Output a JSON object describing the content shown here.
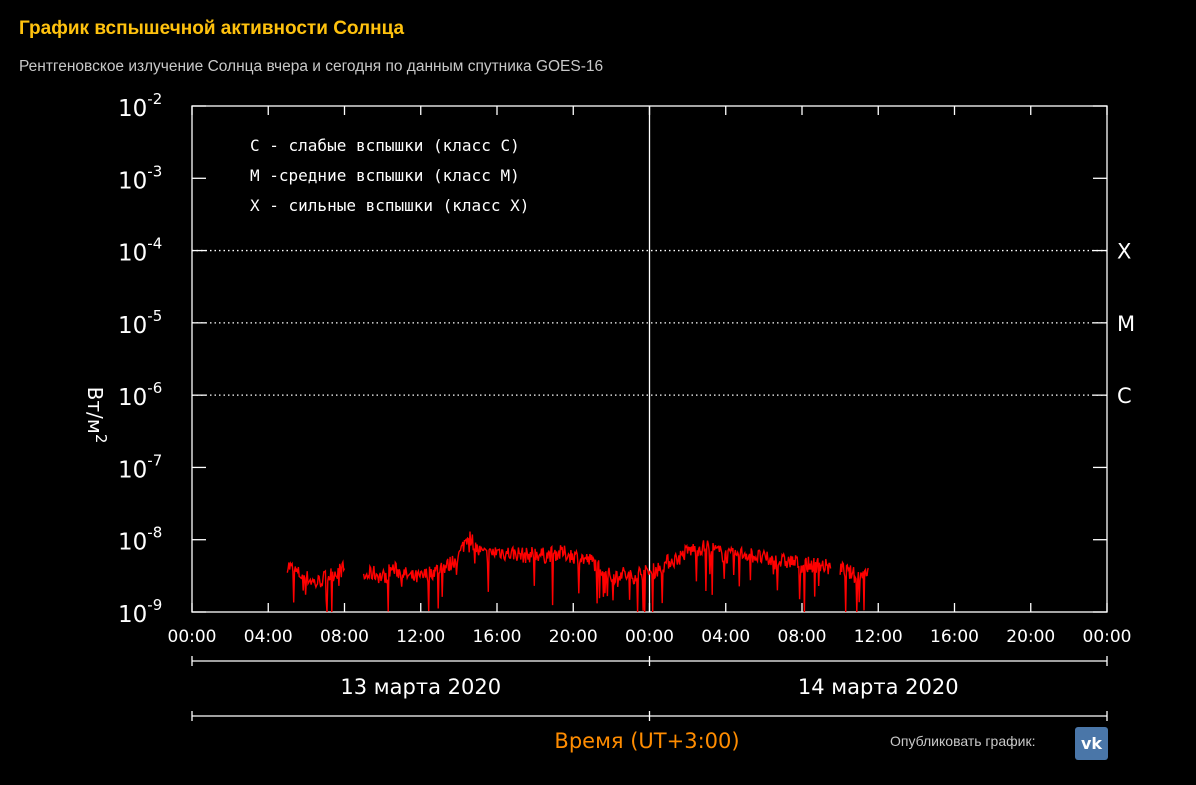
{
  "header": {
    "title": "График вспышечной активности Солнца",
    "subtitle": "Рентгеновское излучение Солнца вчера и сегодня по данным спутника GOES-16"
  },
  "publish": {
    "label": "Опубликовать график:",
    "vk_icon": "vk-icon",
    "vk_text": "vk"
  },
  "chart_data": {
    "type": "line",
    "title": "",
    "ylabel": "Вт/м",
    "ylabel_sup": "2",
    "xlabel": "Время (UT+3:00)",
    "yscale": "log",
    "ylim": [
      1e-09,
      0.01
    ],
    "y_ticks": [
      {
        "base": "10",
        "exp": "-2"
      },
      {
        "base": "10",
        "exp": "-3"
      },
      {
        "base": "10",
        "exp": "-4"
      },
      {
        "base": "10",
        "exp": "-5"
      },
      {
        "base": "10",
        "exp": "-6"
      },
      {
        "base": "10",
        "exp": "-7"
      },
      {
        "base": "10",
        "exp": "-8"
      },
      {
        "base": "10",
        "exp": "-9"
      }
    ],
    "x_tick_labels": [
      "00:00",
      "04:00",
      "08:00",
      "12:00",
      "16:00",
      "20:00",
      "00:00",
      "04:00",
      "08:00",
      "12:00",
      "16:00",
      "20:00",
      "00:00"
    ],
    "days": [
      "13 марта 2020",
      "14 марта 2020"
    ],
    "legend": [
      "C - слабые вспышки (класс C)",
      "M -средние вспышки (класс M)",
      "X - сильные вспышки (класс X)"
    ],
    "class_lines": [
      {
        "label": "X",
        "value": 0.0001
      },
      {
        "label": "M",
        "value": 1e-05
      },
      {
        "label": "C",
        "value": 1e-06
      }
    ],
    "colors": {
      "series": "#ff0000",
      "axis": "#ffffff",
      "xlabel": "#ff8c00"
    },
    "series": [
      {
        "x_unit": "hours since 13 марта 2020 00:00",
        "segments": [
          {
            "x": [
              5.0,
              5.5,
              6.0,
              6.5,
              7.0,
              7.5,
              8.0
            ],
            "y": [
              4.5e-09,
              3.5e-09,
              3e-09,
              2.5e-09,
              3e-09,
              3.5e-09,
              4e-09
            ]
          },
          {
            "x": [
              9.0,
              9.5,
              10.0,
              10.5,
              11.0,
              11.5,
              12.0,
              12.5,
              13.0,
              13.5,
              14.0,
              14.5,
              15.0,
              15.5,
              16.0,
              16.5,
              17.0,
              17.5,
              18.0,
              18.5,
              19.0,
              19.5,
              20.0,
              20.5,
              21.0,
              21.5,
              22.0,
              22.5,
              23.0,
              23.5,
              24.0,
              24.5,
              25.0,
              25.5,
              26.0,
              26.5,
              27.0,
              27.5,
              28.0,
              28.5,
              29.0,
              29.5,
              30.0,
              30.5,
              31.0,
              31.5,
              32.0,
              32.5,
              33.0,
              33.5
            ],
            "y": [
              3e-09,
              3.5e-09,
              3e-09,
              4e-09,
              3.5e-09,
              3e-09,
              3e-09,
              3.5e-09,
              4e-09,
              4.5e-09,
              6e-09,
              1.2e-08,
              7e-09,
              6e-09,
              7e-09,
              6.5e-09,
              6.5e-09,
              6e-09,
              6.5e-09,
              6e-09,
              6.5e-09,
              6.5e-09,
              6e-09,
              5.5e-09,
              5e-09,
              4e-09,
              3e-09,
              3.5e-09,
              3e-09,
              3.5e-09,
              3.5e-09,
              4e-09,
              5e-09,
              5.5e-09,
              7e-09,
              7.5e-09,
              8e-09,
              7e-09,
              6e-09,
              6e-09,
              6.5e-09,
              6e-09,
              5.5e-09,
              5e-09,
              5e-09,
              5e-09,
              4.5e-09,
              4.5e-09,
              4.5e-09,
              4e-09
            ]
          },
          {
            "x": [
              34.0,
              34.5,
              35.0,
              35.5
            ],
            "y": [
              4e-09,
              3.5e-09,
              3e-09,
              4e-09
            ]
          }
        ]
      }
    ]
  }
}
